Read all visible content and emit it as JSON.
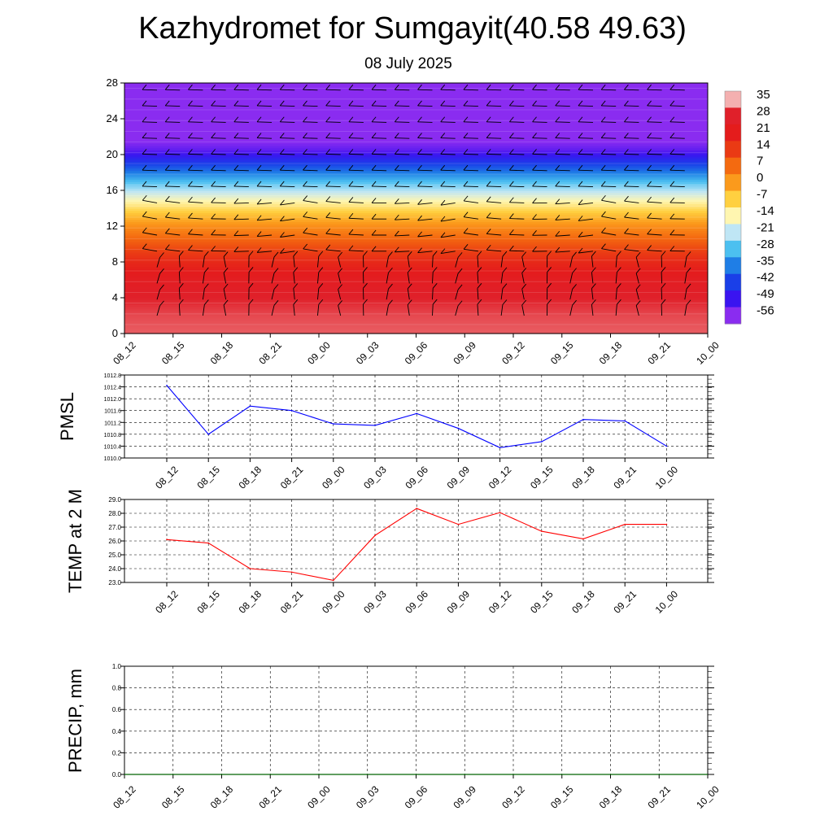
{
  "header": {
    "title": "Kazhydromet for Sumgayit(40.58 49.63)",
    "subtitle": "08 July 2025"
  },
  "time_labels": [
    "08_12",
    "08_15",
    "08_18",
    "08_21",
    "09_00",
    "09_03",
    "09_06",
    "09_09",
    "09_12",
    "09_15",
    "09_18",
    "09_21",
    "10_00"
  ],
  "chart_data": [
    {
      "type": "heatmap",
      "ylabel": "",
      "ylim": [
        0,
        28
      ],
      "y_ticks": [
        0,
        4,
        8,
        12,
        16,
        20,
        24,
        28
      ],
      "x": [
        "08_12",
        "08_15",
        "08_18",
        "08_21",
        "09_00",
        "09_03",
        "09_06",
        "09_09",
        "09_12",
        "09_15",
        "09_18",
        "09_21",
        "10_00"
      ],
      "colorbar_labels": [
        35,
        28,
        21,
        14,
        7,
        0,
        -7,
        -14,
        -21,
        -28,
        -35,
        -42,
        -49,
        -56
      ],
      "colorbar_colors": [
        "#f4b0b0",
        "#e0202a",
        "#e41c1c",
        "#ea3a14",
        "#f46a10",
        "#fb9a1c",
        "#ffd040",
        "#fff6b0",
        "#bfe6f5",
        "#4cc0f0",
        "#1f7ee6",
        "#1a3fe8",
        "#3a14f0",
        "#8a2cf0"
      ],
      "temperature_profile_c": [
        {
          "height": 0,
          "value": 31
        },
        {
          "height": 2,
          "value": 30
        },
        {
          "height": 4,
          "value": 28
        },
        {
          "height": 6,
          "value": 24
        },
        {
          "height": 8,
          "value": 18
        },
        {
          "height": 10,
          "value": 10
        },
        {
          "height": 12,
          "value": 2
        },
        {
          "height": 13.5,
          "value": -6
        },
        {
          "height": 15,
          "value": -15
        },
        {
          "height": 17,
          "value": -28
        },
        {
          "height": 19,
          "value": -42
        },
        {
          "height": 20.5,
          "value": -52
        },
        {
          "height": 21.5,
          "value": -56
        },
        {
          "height": 23,
          "value": -60
        },
        {
          "height": 28,
          "value": -62
        }
      ],
      "grid": false,
      "overlay": "wind barbs"
    },
    {
      "type": "line",
      "ylabel": "PMSL",
      "ylim": [
        1010.0,
        1012.8
      ],
      "y_ticks": [
        "1010.0",
        "1010.4",
        "1010.8",
        "1011.2",
        "1011.6",
        "1012.0",
        "1012.4",
        "1012.8"
      ],
      "x": [
        "08_12",
        "08_15",
        "08_18",
        "08_21",
        "09_00",
        "09_03",
        "09_06",
        "09_09",
        "09_12",
        "09_15",
        "09_18",
        "09_21",
        "10_00"
      ],
      "series": [
        {
          "values": [
            1012.45,
            1010.8,
            1011.75,
            1011.6,
            1011.15,
            1011.1,
            1011.5,
            1011.0,
            1010.35,
            1010.55,
            1011.3,
            1011.25,
            1010.4
          ],
          "color": "#0000ff"
        }
      ],
      "grid": true
    },
    {
      "type": "line",
      "ylabel": "TEMP at 2 M",
      "ylim": [
        23.0,
        29.0
      ],
      "y_ticks": [
        "23.0",
        "24.0",
        "25.0",
        "26.0",
        "27.0",
        "28.0",
        "29.0"
      ],
      "x": [
        "08_12",
        "08_15",
        "08_18",
        "08_21",
        "09_00",
        "09_03",
        "09_06",
        "09_09",
        "09_12",
        "09_15",
        "09_18",
        "09_21",
        "10_00"
      ],
      "series": [
        {
          "values": [
            26.1,
            25.85,
            24.0,
            23.75,
            23.15,
            26.4,
            28.35,
            27.2,
            28.05,
            26.7,
            26.15,
            27.2,
            27.2
          ],
          "color": "#ff0000"
        }
      ],
      "grid": true
    },
    {
      "type": "line",
      "ylabel": "PRECIP, mm",
      "ylim": [
        0.0,
        1.0
      ],
      "y_ticks": [
        "0.0",
        "0.2",
        "0.4",
        "0.6",
        "0.8",
        "1.0"
      ],
      "x": [
        "08_12",
        "08_15",
        "08_18",
        "08_21",
        "09_00",
        "09_03",
        "09_06",
        "09_09",
        "09_12",
        "09_15",
        "09_18",
        "09_21",
        "10_00"
      ],
      "series": [
        {
          "values": [
            0,
            0,
            0,
            0,
            0,
            0,
            0,
            0,
            0,
            0,
            0,
            0,
            0
          ],
          "color": "#006400"
        }
      ],
      "grid": true
    }
  ]
}
